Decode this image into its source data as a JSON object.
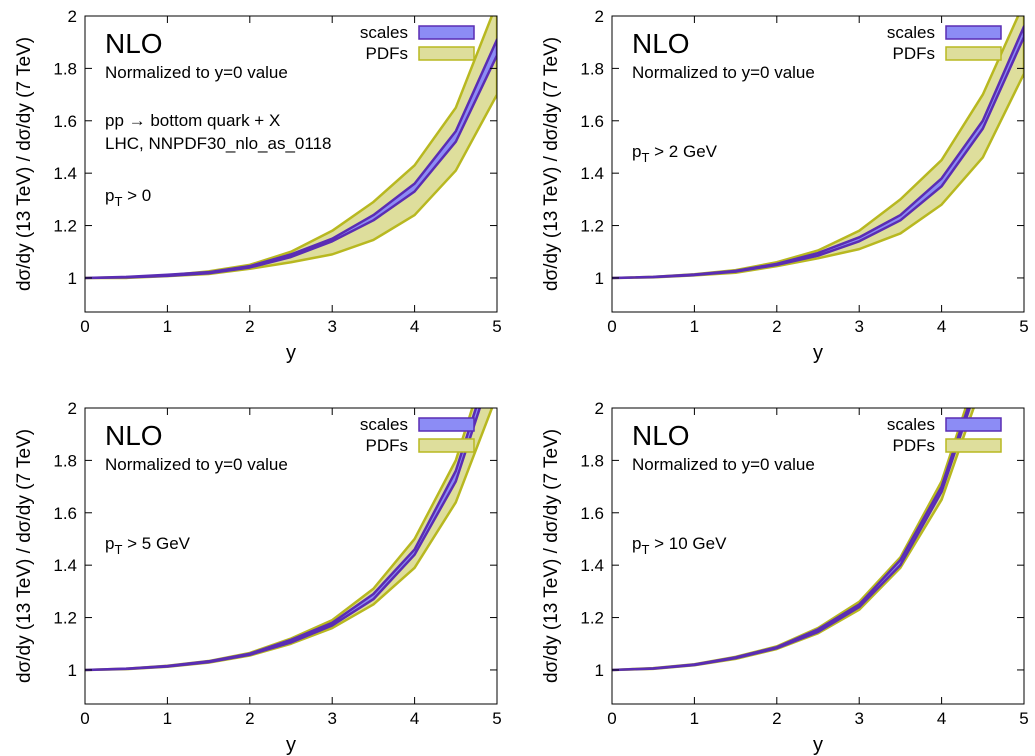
{
  "chart_data": [
    {
      "type": "band",
      "title": "NLO",
      "subtitle": "Normalized to y=0 value",
      "annotations": [
        "pp → bottom quark + X",
        "LHC, NNPDF30_nlo_as_0118"
      ],
      "cut_label": [
        "p",
        "T",
        " > 0"
      ],
      "xlabel": "y",
      "ylabel": "dσ/dy (13 TeV) / dσ/dy (7 TeV)",
      "xlim": [
        0,
        5
      ],
      "ylim": [
        0.87,
        2
      ],
      "xticks": [
        0,
        1,
        2,
        3,
        4,
        5
      ],
      "yticks": [
        1,
        1.2,
        1.4,
        1.6,
        1.8,
        2
      ],
      "x": [
        0,
        0.5,
        1,
        1.5,
        2,
        2.5,
        3,
        3.5,
        4,
        4.5,
        5
      ],
      "series": [
        {
          "name": "PDFs",
          "color": "#b8b820",
          "fill": "#dede9c",
          "low": [
            1,
            1,
            1.007,
            1.015,
            1.035,
            1.06,
            1.09,
            1.145,
            1.24,
            1.41,
            1.7
          ],
          "high": [
            1,
            1.003,
            1.01,
            1.025,
            1.05,
            1.1,
            1.18,
            1.29,
            1.43,
            1.65,
            2.05
          ]
        },
        {
          "name": "scales",
          "color": "#5a2db4",
          "fill": "#8c8cf5",
          "low": [
            1,
            1.002,
            1.008,
            1.018,
            1.04,
            1.08,
            1.14,
            1.22,
            1.33,
            1.52,
            1.85
          ],
          "high": [
            1,
            1.004,
            1.012,
            1.022,
            1.045,
            1.09,
            1.15,
            1.24,
            1.36,
            1.56,
            1.91
          ]
        }
      ]
    },
    {
      "type": "band",
      "title": "NLO",
      "subtitle": "Normalized to y=0 value",
      "cut_label": [
        "p",
        "T",
        " > 2 GeV"
      ],
      "xlabel": "y",
      "ylabel": "dσ/dy (13 TeV) / dσ/dy (7 TeV)",
      "xlim": [
        0,
        5
      ],
      "ylim": [
        0.87,
        2
      ],
      "xticks": [
        0,
        1,
        2,
        3,
        4,
        5
      ],
      "yticks": [
        1,
        1.2,
        1.4,
        1.6,
        1.8,
        2
      ],
      "x": [
        0,
        0.5,
        1,
        1.5,
        2,
        2.5,
        3,
        3.5,
        4,
        4.5,
        5
      ],
      "series": [
        {
          "name": "PDFs",
          "color": "#b8b820",
          "fill": "#dede9c",
          "low": [
            1,
            1.002,
            1.01,
            1.02,
            1.045,
            1.075,
            1.11,
            1.17,
            1.28,
            1.46,
            1.78
          ],
          "high": [
            1,
            1.004,
            1.014,
            1.03,
            1.06,
            1.105,
            1.18,
            1.3,
            1.45,
            1.7,
            2.05
          ]
        },
        {
          "name": "scales",
          "color": "#5a2db4",
          "fill": "#8c8cf5",
          "low": [
            1,
            1.003,
            1.011,
            1.024,
            1.05,
            1.085,
            1.14,
            1.22,
            1.35,
            1.57,
            1.92
          ],
          "high": [
            1,
            1.004,
            1.013,
            1.027,
            1.054,
            1.095,
            1.155,
            1.24,
            1.38,
            1.6,
            1.96
          ]
        }
      ]
    },
    {
      "type": "band",
      "title": "NLO",
      "subtitle": "Normalized to y=0 value",
      "cut_label": [
        "p",
        "T",
        " > 5 GeV"
      ],
      "xlabel": "y",
      "ylabel": "dσ/dy (13 TeV) / dσ/dy (7 TeV)",
      "xlim": [
        0,
        5
      ],
      "ylim": [
        0.87,
        2
      ],
      "xticks": [
        0,
        1,
        2,
        3,
        4,
        5
      ],
      "yticks": [
        1,
        1.2,
        1.4,
        1.6,
        1.8,
        2
      ],
      "x": [
        0,
        0.5,
        1,
        1.5,
        2,
        2.5,
        3,
        3.5,
        4,
        4.5,
        5
      ],
      "series": [
        {
          "name": "PDFs",
          "color": "#b8b820",
          "fill": "#dede9c",
          "low": [
            1,
            1.003,
            1.012,
            1.028,
            1.055,
            1.1,
            1.16,
            1.25,
            1.39,
            1.64,
            2.05
          ],
          "high": [
            1,
            1.005,
            1.016,
            1.034,
            1.065,
            1.12,
            1.19,
            1.31,
            1.5,
            1.8,
            2.3
          ]
        },
        {
          "name": "scales",
          "color": "#5a2db4",
          "fill": "#8c8cf5",
          "low": [
            1,
            1.004,
            1.013,
            1.03,
            1.058,
            1.105,
            1.17,
            1.27,
            1.44,
            1.72,
            2.2
          ],
          "high": [
            1,
            1.005,
            1.015,
            1.033,
            1.062,
            1.115,
            1.18,
            1.29,
            1.46,
            1.76,
            2.25
          ]
        }
      ]
    },
    {
      "type": "band",
      "title": "NLO",
      "subtitle": "Normalized to y=0 value",
      "cut_label": [
        "p",
        "T",
        " > 10 GeV"
      ],
      "xlabel": "y",
      "ylabel": "dσ/dy (13 TeV) / dσ/dy (7 TeV)",
      "xlim": [
        0,
        5
      ],
      "ylim": [
        0.87,
        2
      ],
      "xticks": [
        0,
        1,
        2,
        3,
        4,
        5
      ],
      "yticks": [
        1,
        1.2,
        1.4,
        1.6,
        1.8,
        2
      ],
      "x": [
        0,
        0.5,
        1,
        1.5,
        2,
        2.5,
        3,
        3.5,
        4,
        4.5
      ],
      "series": [
        {
          "name": "PDFs",
          "color": "#b8b820",
          "fill": "#dede9c",
          "low": [
            1,
            1.004,
            1.018,
            1.042,
            1.08,
            1.14,
            1.23,
            1.39,
            1.65,
            2.1
          ],
          "high": [
            1,
            1.007,
            1.022,
            1.05,
            1.09,
            1.16,
            1.26,
            1.43,
            1.72,
            2.2
          ]
        },
        {
          "name": "scales",
          "color": "#5a2db4",
          "fill": "#8c8cf5",
          "low": [
            1,
            1.005,
            1.019,
            1.045,
            1.083,
            1.145,
            1.24,
            1.4,
            1.68,
            2.15
          ],
          "high": [
            1,
            1.006,
            1.021,
            1.048,
            1.087,
            1.155,
            1.25,
            1.42,
            1.7,
            2.17
          ]
        }
      ]
    }
  ]
}
